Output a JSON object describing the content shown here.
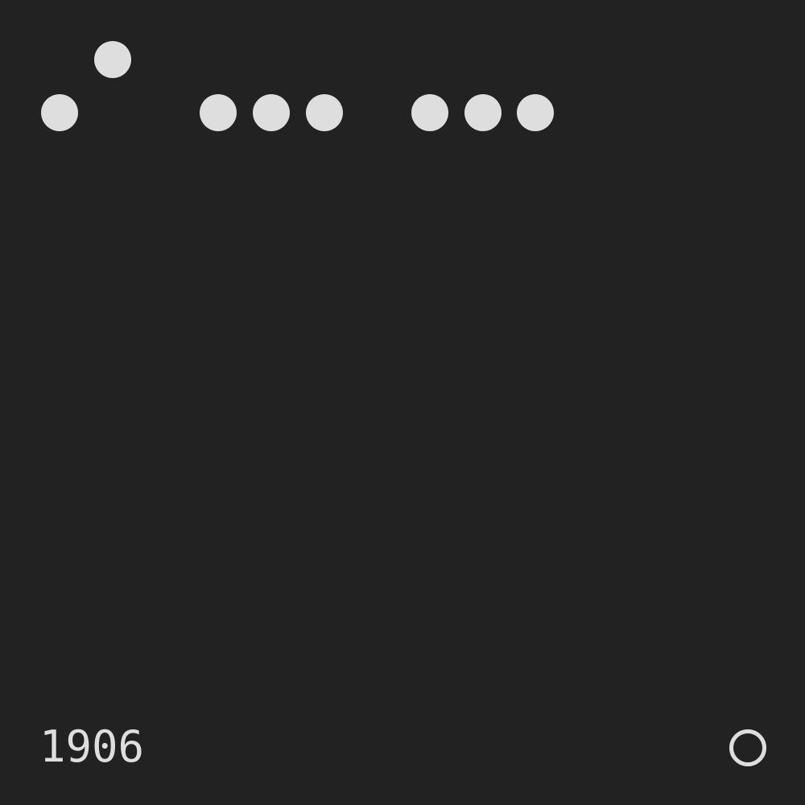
{
  "colors": {
    "background": "#222222",
    "foreground": "#dedede"
  },
  "code": {
    "year": "1906",
    "groups": [
      {
        "name": "group-1",
        "dots": [
          {
            "raised": false
          },
          {
            "raised": true
          }
        ]
      },
      {
        "name": "group-2",
        "dots": [
          {
            "raised": false
          },
          {
            "raised": false
          },
          {
            "raised": false
          }
        ]
      },
      {
        "name": "group-3",
        "dots": [
          {
            "raised": false
          },
          {
            "raised": false
          },
          {
            "raised": false
          }
        ]
      }
    ]
  },
  "indicator": {
    "icon": "circle-outline-icon",
    "filled": false
  }
}
